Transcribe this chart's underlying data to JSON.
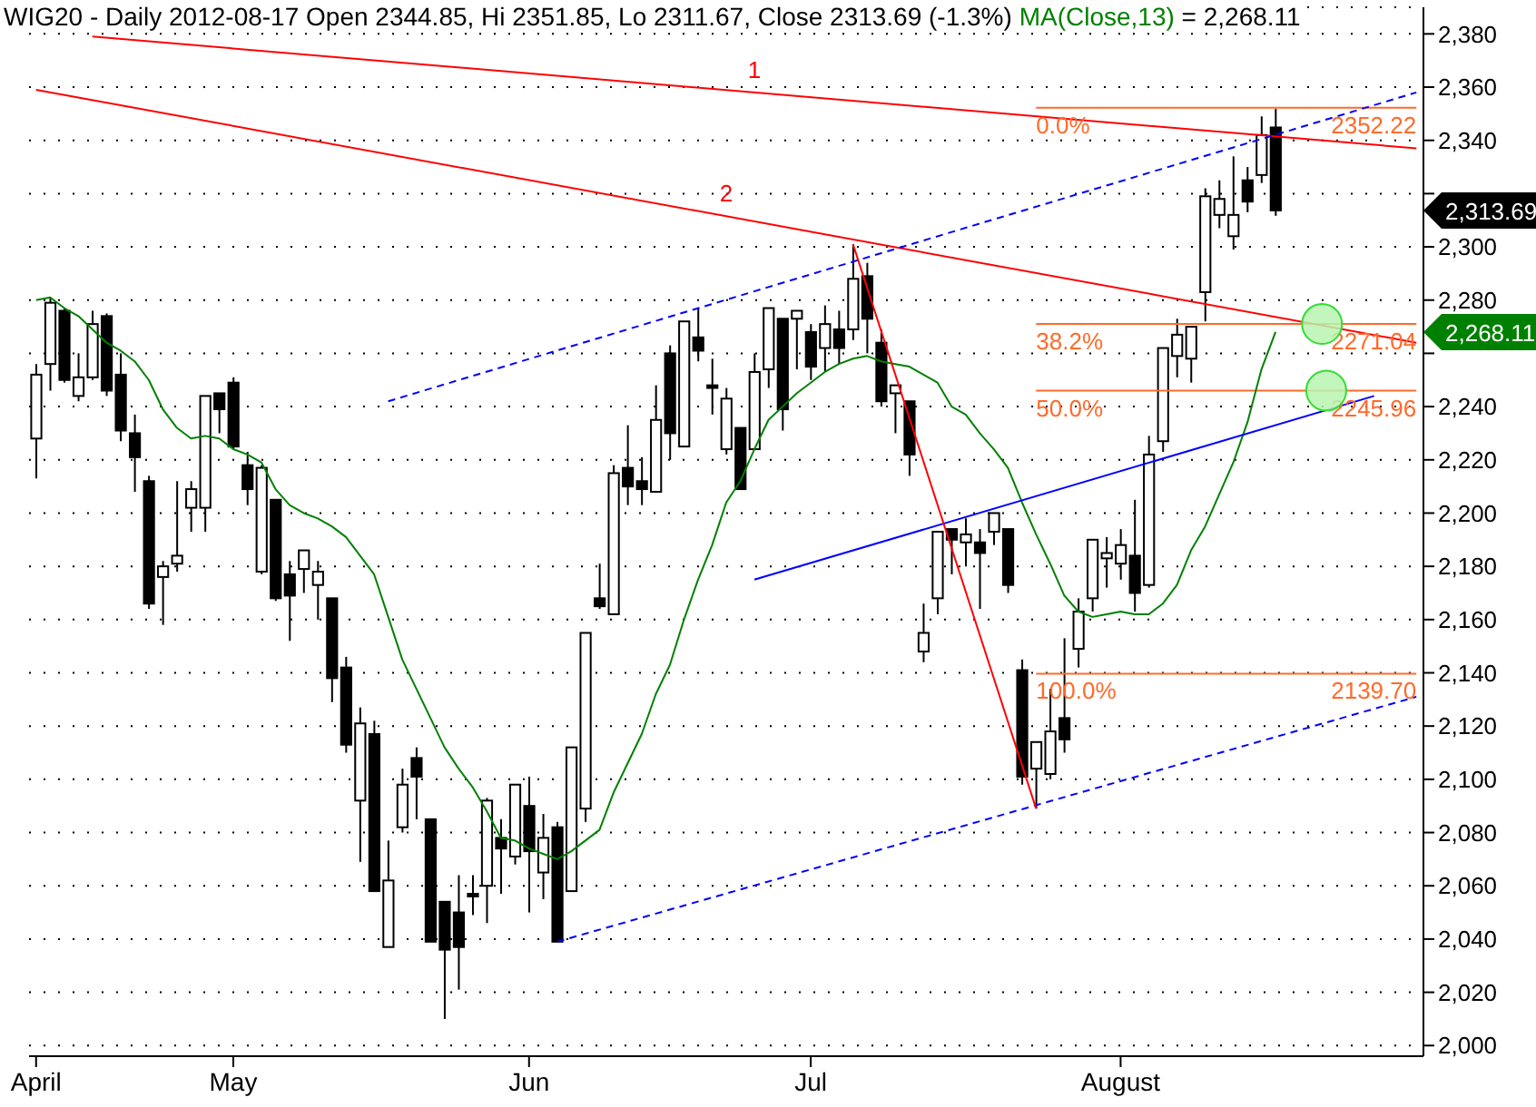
{
  "chart_data": {
    "type": "candlestick",
    "title": "WIG20 - Daily 2012-08-17 Open 2344.85, Hi 2351.85, Lo 2311.67, Close 2313.69 (-1.3%)",
    "categories": [
      "April",
      null,
      null,
      null,
      null,
      null,
      null,
      null,
      null,
      null,
      null,
      null,
      null,
      null,
      "May",
      null,
      null,
      null,
      null,
      null,
      null,
      null,
      null,
      null,
      null,
      null,
      null,
      null,
      null,
      null,
      null,
      null,
      null,
      null,
      null,
      "Jun",
      null,
      null,
      null,
      null,
      null,
      null,
      null,
      null,
      null,
      null,
      null,
      null,
      null,
      null,
      null,
      null,
      null,
      null,
      null,
      "Jul",
      null,
      null,
      null,
      null,
      null,
      null,
      null,
      null,
      null,
      null,
      null,
      null,
      null,
      null,
      null,
      null,
      null,
      null,
      null,
      null,
      null,
      "August",
      null,
      null,
      null,
      null,
      null,
      null,
      null,
      null,
      null,
      null,
      null,
      null,
      null,
      null,
      null,
      null,
      null,
      null,
      null,
      null,
      null
    ],
    "ohlc": [
      [
        2228,
        2256,
        2213,
        2252
      ],
      [
        2256,
        2281,
        2246,
        2279
      ],
      [
        2276,
        2277,
        2249,
        2250
      ],
      [
        2244,
        2260,
        2242,
        2251
      ],
      [
        2251,
        2276,
        2250,
        2271
      ],
      [
        2274,
        2275,
        2244,
        2246
      ],
      [
        2252,
        2260,
        2227,
        2231
      ],
      [
        2230,
        2237,
        2208,
        2221
      ],
      [
        2212,
        2214,
        2164,
        2166
      ],
      [
        2176,
        2182,
        2158,
        2180
      ],
      [
        2181,
        2212,
        2178,
        2184
      ],
      [
        2202,
        2212,
        2193,
        2209
      ],
      [
        2202,
        2244,
        2193,
        2244
      ],
      [
        2245,
        2245,
        2230,
        2239
      ],
      [
        2249,
        2251,
        2224,
        2225
      ],
      [
        2218,
        2223,
        2203,
        2209
      ],
      [
        2178,
        2218,
        2177,
        2217
      ],
      [
        2205,
        2205,
        2167,
        2168
      ],
      [
        2177,
        2182,
        2152,
        2169
      ],
      [
        2179,
        2186,
        2170,
        2186
      ],
      [
        2173,
        2182,
        2160,
        2178
      ],
      [
        2168,
        2168,
        2129,
        2138
      ],
      [
        2142,
        2146,
        2110,
        2113
      ],
      [
        2092,
        2127,
        2069,
        2121
      ],
      [
        2117,
        2122,
        2058,
        2058
      ],
      [
        2037,
        2077,
        2037,
        2062
      ],
      [
        2082,
        2104,
        2080,
        2098
      ],
      [
        2108,
        2112,
        2085,
        2101
      ],
      [
        2085,
        2085,
        2039,
        2039
      ],
      [
        2054,
        2054,
        2010,
        2036
      ],
      [
        2050,
        2064,
        2021,
        2037
      ],
      [
        2057,
        2064,
        2049,
        2056
      ],
      [
        2060,
        2093,
        2046,
        2092
      ],
      [
        2078,
        2085,
        2057,
        2074
      ],
      [
        2071,
        2098,
        2068,
        2098
      ],
      [
        2090,
        2101,
        2050,
        2073
      ],
      [
        2065,
        2087,
        2055,
        2078
      ],
      [
        2082,
        2084,
        2039,
        2039
      ],
      [
        2058,
        2112,
        2058,
        2112
      ],
      [
        2089,
        2155,
        2084,
        2155
      ],
      [
        2168,
        2181,
        2164,
        2165
      ],
      [
        2162,
        2218,
        2162,
        2215
      ],
      [
        2217,
        2233,
        2203,
        2210
      ],
      [
        2212,
        2221,
        2203,
        2209
      ],
      [
        2208,
        2248,
        2208,
        2235
      ],
      [
        2260,
        2263,
        2220,
        2230
      ],
      [
        2225,
        2272,
        2225,
        2272
      ],
      [
        2266,
        2277,
        2257,
        2261
      ],
      [
        2248,
        2258,
        2237,
        2247
      ],
      [
        2224,
        2247,
        2222,
        2243
      ],
      [
        2232,
        2232,
        2209,
        2209
      ],
      [
        2224,
        2260,
        2224,
        2253
      ],
      [
        2254,
        2277,
        2247,
        2277
      ],
      [
        2273,
        2273,
        2231,
        2239
      ],
      [
        2273,
        2276,
        2254,
        2276
      ],
      [
        2268,
        2271,
        2250,
        2255
      ],
      [
        2262,
        2278,
        2253,
        2271
      ],
      [
        2269,
        2276,
        2256,
        2262
      ],
      [
        2269,
        2301,
        2265,
        2288
      ],
      [
        2289,
        2294,
        2260,
        2273
      ],
      [
        2264,
        2269,
        2240,
        2242
      ],
      [
        2245,
        2248,
        2230,
        2248
      ],
      [
        2242,
        2242,
        2214,
        2222
      ],
      [
        2148,
        2166,
        2144,
        2155
      ],
      [
        2168,
        2193,
        2162,
        2193
      ],
      [
        2194,
        2194,
        2177,
        2190
      ],
      [
        2189,
        2198,
        2180,
        2192
      ],
      [
        2189,
        2194,
        2164,
        2185
      ],
      [
        2193,
        2200,
        2188,
        2200
      ],
      [
        2194,
        2194,
        2170,
        2173
      ],
      [
        2141,
        2145,
        2098,
        2101
      ],
      [
        2104,
        2114,
        2089,
        2114
      ],
      [
        2102,
        2134,
        2100,
        2118
      ],
      [
        2123,
        2153,
        2110,
        2115
      ],
      [
        2149,
        2168,
        2142,
        2163
      ],
      [
        2168,
        2190,
        2163,
        2190
      ],
      [
        2183,
        2191,
        2172,
        2185
      ],
      [
        2181,
        2194,
        2175,
        2188
      ],
      [
        2184,
        2205,
        2163,
        2170
      ],
      [
        2173,
        2229,
        2172,
        2222
      ],
      [
        2227,
        2262,
        2223,
        2262
      ],
      [
        2259,
        2273,
        2251,
        2267
      ],
      [
        2258,
        2270,
        2249,
        2270
      ],
      [
        2283,
        2322,
        2272,
        2319
      ],
      [
        2312,
        2325,
        2307,
        2318
      ],
      [
        2304,
        2334,
        2299,
        2312
      ],
      [
        2325,
        2330,
        2313,
        2317
      ],
      [
        2327,
        2349,
        2324,
        2342
      ],
      [
        2344.85,
        2351.85,
        2311.67,
        2313.69
      ],
      null,
      null,
      null,
      null,
      null,
      null,
      null,
      null,
      null,
      null
    ],
    "series": [
      {
        "type": "line",
        "name": "MA(Close,13)",
        "color": "#008000",
        "values": [
          2280,
          2281,
          2277,
          2274,
          2269,
          2264,
          2261,
          2257,
          2250,
          2239,
          2232,
          2228,
          2229,
          2228,
          2224,
          2222,
          2219,
          2209,
          2203,
          2200,
          2198,
          2195,
          2191,
          2184,
          2177,
          2161,
          2145,
          2134,
          2123,
          2112,
          2104,
          2097,
          2088,
          2078,
          2077,
          2074,
          2072,
          2070,
          2073,
          2077,
          2081,
          2095,
          2106,
          2117,
          2132,
          2143,
          2160,
          2175,
          2188,
          2204,
          2212,
          2224,
          2235,
          2240,
          2245,
          2249,
          2253,
          2256,
          2258,
          2259,
          2257,
          2256,
          2255,
          2252,
          2249,
          2240,
          2237,
          2230,
          2224,
          2217,
          2204,
          2192,
          2181,
          2169,
          2163,
          2161,
          2162,
          2163,
          2162,
          2162,
          2166,
          2173,
          2186,
          2195,
          2207,
          2219,
          2234,
          2254,
          2268,
          null,
          null,
          null,
          null,
          null,
          null,
          null,
          null,
          null,
          null
        ]
      },
      {
        "type": "line",
        "name": "1",
        "color": "#ff0000",
        "values": [
          null,
          null,
          null,
          null,
          2379,
          null,
          null,
          null,
          null,
          null,
          null,
          null,
          null,
          null,
          null,
          null,
          null,
          null,
          null,
          null,
          null,
          null,
          null,
          null,
          null,
          null,
          null,
          null,
          null,
          null,
          null,
          null,
          null,
          null,
          null,
          null,
          null,
          null,
          null,
          null,
          null,
          null,
          null,
          null,
          null,
          null,
          null,
          null,
          null,
          null,
          null,
          null,
          null,
          null,
          null,
          null,
          null,
          null,
          null,
          null,
          null,
          null,
          null,
          null,
          null,
          null,
          null,
          null,
          null,
          null,
          null,
          null,
          null,
          null,
          null,
          null,
          null,
          null,
          null,
          null,
          null,
          null,
          null,
          null,
          null,
          null,
          null,
          null,
          null,
          null,
          null,
          null,
          null,
          null,
          null,
          null,
          null,
          null,
          2337
        ]
      },
      {
        "type": "line",
        "name": "2",
        "color": "#ff0000",
        "values": [
          2359,
          null,
          null,
          null,
          null,
          null,
          null,
          null,
          null,
          null,
          null,
          null,
          null,
          null,
          null,
          null,
          null,
          null,
          null,
          null,
          null,
          null,
          null,
          null,
          null,
          null,
          null,
          null,
          null,
          null,
          null,
          null,
          null,
          null,
          null,
          null,
          null,
          null,
          null,
          null,
          null,
          null,
          null,
          null,
          null,
          null,
          null,
          null,
          null,
          null,
          null,
          null,
          null,
          null,
          null,
          null,
          null,
          null,
          null,
          null,
          null,
          null,
          null,
          null,
          null,
          null,
          null,
          null,
          null,
          null,
          null,
          null,
          null,
          null,
          null,
          null,
          null,
          null,
          null,
          null,
          null,
          null,
          null,
          null,
          null,
          null,
          null,
          null,
          null,
          null,
          null,
          null,
          null,
          null,
          null,
          null,
          null,
          null,
          2264
        ]
      },
      {
        "type": "line",
        "color": "#0000ff",
        "line_style": "dashed",
        "values": [
          null,
          null,
          null,
          null,
          null,
          null,
          null,
          null,
          null,
          null,
          null,
          null,
          null,
          null,
          null,
          null,
          null,
          null,
          null,
          null,
          null,
          null,
          null,
          null,
          null,
          2242,
          null,
          null,
          null,
          null,
          null,
          null,
          null,
          null,
          null,
          null,
          null,
          null,
          null,
          null,
          null,
          null,
          null,
          null,
          null,
          null,
          null,
          null,
          null,
          null,
          null,
          null,
          null,
          null,
          null,
          null,
          null,
          null,
          null,
          null,
          null,
          null,
          null,
          null,
          null,
          null,
          null,
          null,
          null,
          null,
          null,
          null,
          null,
          null,
          null,
          null,
          null,
          null,
          null,
          null,
          null,
          null,
          null,
          null,
          null,
          null,
          null,
          null,
          null,
          null,
          null,
          null,
          null,
          null,
          null,
          null,
          null,
          null,
          2358
        ]
      },
      {
        "type": "line",
        "color": "#0000ff",
        "line_style": "dashed",
        "values": [
          null,
          null,
          null,
          null,
          null,
          null,
          null,
          null,
          null,
          null,
          null,
          null,
          null,
          null,
          null,
          null,
          null,
          null,
          null,
          null,
          null,
          null,
          null,
          null,
          null,
          null,
          null,
          null,
          null,
          null,
          null,
          null,
          null,
          null,
          null,
          null,
          null,
          2039,
          null,
          null,
          null,
          null,
          null,
          null,
          null,
          null,
          null,
          null,
          null,
          null,
          null,
          null,
          null,
          null,
          null,
          null,
          null,
          null,
          null,
          null,
          null,
          null,
          null,
          null,
          null,
          null,
          null,
          null,
          null,
          null,
          null,
          null,
          null,
          null,
          null,
          null,
          null,
          null,
          null,
          null,
          null,
          null,
          null,
          null,
          null,
          null,
          null,
          null,
          null,
          null,
          null,
          null,
          null,
          null,
          null,
          null,
          null,
          null,
          2131
        ]
      },
      {
        "type": "line",
        "color": "#0000ff",
        "values": [
          null,
          null,
          null,
          null,
          null,
          null,
          null,
          null,
          null,
          null,
          null,
          null,
          null,
          null,
          null,
          null,
          null,
          null,
          null,
          null,
          null,
          null,
          null,
          null,
          null,
          null,
          null,
          null,
          null,
          null,
          null,
          null,
          null,
          null,
          null,
          null,
          null,
          null,
          null,
          null,
          null,
          null,
          null,
          null,
          null,
          null,
          null,
          null,
          null,
          null,
          null,
          2175,
          null,
          null,
          null,
          null,
          null,
          null,
          null,
          null,
          null,
          null,
          null,
          null,
          null,
          null,
          null,
          null,
          null,
          null,
          null,
          null,
          null,
          null,
          null,
          null,
          null,
          null,
          null,
          null,
          null,
          null,
          null,
          null,
          null,
          null,
          null,
          null,
          null,
          null,
          null,
          null,
          null,
          null,
          null,
          2244,
          null,
          null,
          null
        ]
      },
      {
        "type": "line",
        "color": "#ff0000",
        "values": [
          null,
          null,
          null,
          null,
          null,
          null,
          null,
          null,
          null,
          null,
          null,
          null,
          null,
          null,
          null,
          null,
          null,
          null,
          null,
          null,
          null,
          null,
          null,
          null,
          null,
          null,
          null,
          null,
          null,
          null,
          null,
          null,
          null,
          null,
          null,
          null,
          null,
          null,
          null,
          null,
          null,
          null,
          null,
          null,
          null,
          null,
          null,
          null,
          null,
          null,
          null,
          null,
          null,
          null,
          null,
          null,
          null,
          null,
          2301,
          null,
          null,
          null,
          null,
          null,
          null,
          null,
          null,
          null,
          null,
          null,
          null,
          2089,
          null,
          null,
          null,
          null,
          null,
          null,
          null,
          null,
          null,
          null,
          null,
          null,
          null,
          null,
          null,
          null,
          null,
          null,
          null,
          null,
          null,
          null,
          null,
          null,
          null,
          null,
          null
        ]
      }
    ],
    "ylim": [
      1996,
      2390
    ],
    "yticks": [
      {
        "value": 2000,
        "label": "2,000"
      },
      {
        "value": 2020,
        "label": "2,020"
      },
      {
        "value": 2040,
        "label": "2,040"
      },
      {
        "value": 2060,
        "label": "2,060"
      },
      {
        "value": 2080,
        "label": "2,080"
      },
      {
        "value": 2100,
        "label": "2,100"
      },
      {
        "value": 2120,
        "label": "2,120"
      },
      {
        "value": 2140,
        "label": "2,140"
      },
      {
        "value": 2160,
        "label": "2,160"
      },
      {
        "value": 2180,
        "label": "2,180"
      },
      {
        "value": 2200,
        "label": "2,200"
      },
      {
        "value": 2220,
        "label": "2,220"
      },
      {
        "value": 2240,
        "label": "2,240"
      },
      {
        "value": 2260,
        "label": null
      },
      {
        "value": 2280,
        "label": "2,280"
      },
      {
        "value": 2300,
        "label": "2,300"
      },
      {
        "value": 2320,
        "label": null
      },
      {
        "value": 2340,
        "label": "2,340"
      },
      {
        "value": 2360,
        "label": "2,360"
      },
      {
        "value": 2380,
        "label": "2,380"
      }
    ],
    "grid": "y",
    "ref_lines": [
      {
        "axis": "y",
        "value": 2352.22,
        "label": "2352.22",
        "color": "#ff6a2a"
      },
      {
        "axis": "y",
        "value": 2271.04,
        "label": "2271.04",
        "color": "#ff6a2a"
      },
      {
        "axis": "y",
        "value": 2245.96,
        "label": "2245.96",
        "color": "#ff6a2a"
      },
      {
        "axis": "y",
        "value": 2139.7,
        "label": "2139.70",
        "color": "#ff6a2a"
      }
    ],
    "annotations": [
      "= 2,268.11",
      "0.0%",
      "38.2%",
      "50.0%",
      "100.0%",
      "2,313.69",
      "2,268.11"
    ]
  }
}
